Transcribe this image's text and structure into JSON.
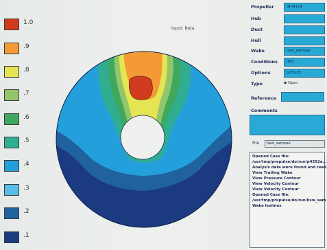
{
  "plot": {
    "title": "Input: Beta"
  },
  "legend": [
    {
      "label": "1.0",
      "color": "#d23a1e"
    },
    {
      "label": ".9",
      "color": "#f39a34"
    },
    {
      "label": ".8",
      "color": "#e5e453"
    },
    {
      "label": ".7",
      "color": "#93c66a"
    },
    {
      "label": ".6",
      "color": "#3fa85f"
    },
    {
      "label": ".5",
      "color": "#30ad92"
    },
    {
      "label": ".4",
      "color": "#23a0dc"
    },
    {
      "label": ".3",
      "color": "#56bde6"
    },
    {
      "label": ".2",
      "color": "#20629e"
    },
    {
      "label": ".1",
      "color": "#1c3a80"
    }
  ],
  "panel": {
    "fields": [
      {
        "label": "Propeller",
        "value": "dtn4119"
      },
      {
        "label": "Hub",
        "value": ""
      },
      {
        "label": "Duct",
        "value": ""
      },
      {
        "label": "Hull",
        "value": ""
      },
      {
        "label": "Wake",
        "value": "hsw_samsoe"
      },
      {
        "label": "Conditions",
        "value": "jt83"
      },
      {
        "label": "Options",
        "value": "p25x15"
      }
    ],
    "type_label": "Type",
    "type_option": "Open",
    "reference_label": "Reference",
    "comments_label": "Comments",
    "file_label": "File",
    "file_value": "hsw_samsoe",
    "log": [
      "Opened Case file:",
      "/usr/tmp/prepulse/do/run/p4352a...",
      "Analysis data were found and read",
      "View Trailing Wake",
      "View Pressure Contour",
      "View Velocity Contour",
      "View Velocity Contour",
      "Opened Case file:",
      "/usr/tmp/prepulse/do/run/hsw_sam",
      "Wake Isolines"
    ]
  }
}
